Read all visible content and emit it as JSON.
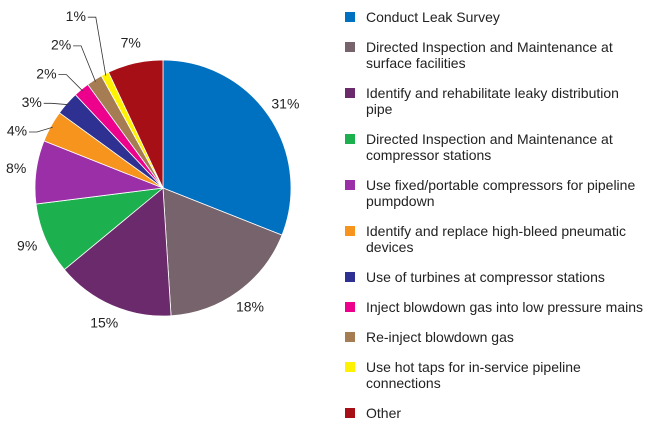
{
  "chart_data": {
    "type": "pie",
    "categories": [
      "Conduct Leak Survey",
      "Directed Inspection and Maintenance at surface facilities",
      "Identify and rehabilitate leaky distribution pipe",
      "Directed Inspection and Maintenance at compressor stations",
      "Use fixed/portable compressors for pipeline pumpdown",
      "Identify and replace high-bleed pneumatic devices",
      "Use of turbines at compressor stations",
      "Inject blowdown gas into low pressure mains",
      "Re-inject blowdown gas",
      "Use hot taps for in-service pipeline connections",
      "Other"
    ],
    "values": [
      31,
      18,
      15,
      9,
      8,
      4,
      3,
      2,
      2,
      1,
      7
    ],
    "value_labels": [
      "31%",
      "18%",
      "15%",
      "9%",
      "8%",
      "4%",
      "3%",
      "2%",
      "2%",
      "1%",
      "7%"
    ],
    "colors": [
      "#0070c0",
      "#76636b",
      "#6b2a6b",
      "#1db04f",
      "#9b2fa8",
      "#f7941d",
      "#2e3192",
      "#ec008c",
      "#a67c52",
      "#fff200",
      "#a50f15"
    ]
  }
}
